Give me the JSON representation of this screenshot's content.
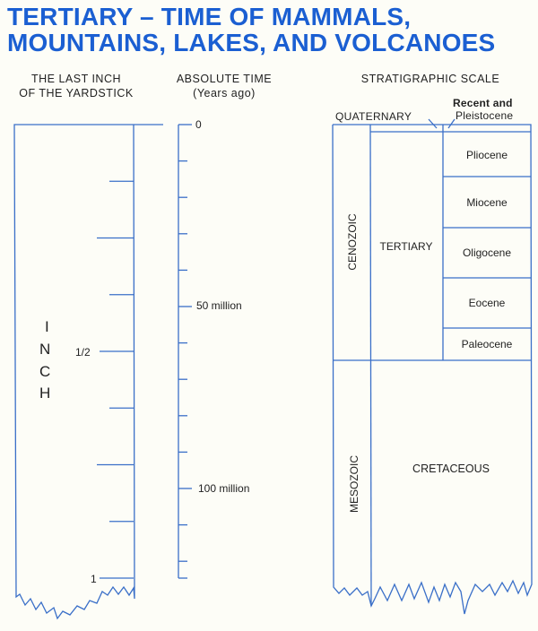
{
  "title": {
    "line1": "TERTIARY – TIME OF MAMMALS,",
    "line2": "MOUNTAINS, LAKES, AND VOLCANOES"
  },
  "colors": {
    "title": "#1b5fd2",
    "lines": "#3a6fc8",
    "text": "#222222"
  },
  "yardstick": {
    "header_line1": "THE LAST INCH",
    "header_line2": "OF THE YARDSTICK",
    "vertical_label": [
      "I",
      "N",
      "C",
      "H"
    ],
    "half_label": "1/2",
    "one_label": "1",
    "ticks_per_inch": 8
  },
  "absolute_time": {
    "header_line1": "ABSOLUTE TIME",
    "header_line2": "(Years ago)",
    "zero_label": "0",
    "label_50": "50 million",
    "label_100": "100 million",
    "tick_interval_million_years": 10
  },
  "stratigraphic": {
    "header": "STRATIGRAPHIC SCALE",
    "eras": [
      "CENOZOIC",
      "MESOZOIC"
    ],
    "periods": {
      "quaternary": "QUATERNARY",
      "tertiary": "TERTIARY",
      "cretaceous": "CRETACEOUS"
    },
    "recent_label_line1": "Recent and",
    "recent_label_line2": "Pleistocene",
    "epochs": [
      "Pliocene",
      "Miocene",
      "Oligocene",
      "Eocene",
      "Paleocene"
    ]
  }
}
